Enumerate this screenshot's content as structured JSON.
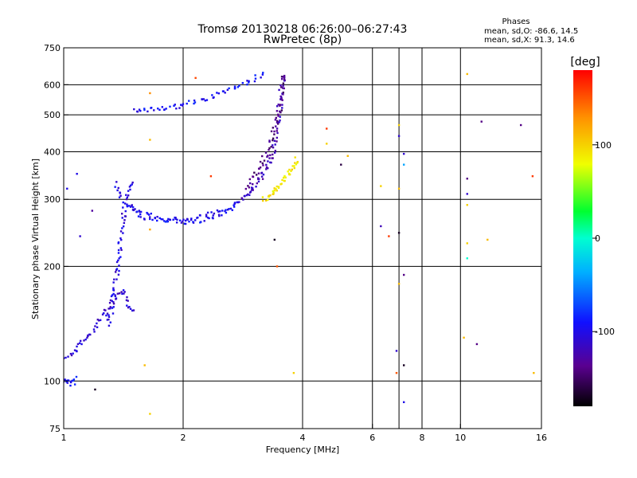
{
  "chart_data": {
    "type": "scatter",
    "title": "Tromsø 20130218 06:26:00–06:27:43",
    "subtitle": "RwPretec (8p)",
    "xlabel": "Frequency [MHz]",
    "ylabel": "Stationary phase Virtual Height [km]",
    "x_scale": "log",
    "y_scale": "log",
    "xlim": [
      1,
      16
    ],
    "ylim": [
      75,
      750
    ],
    "x_ticks": [
      1,
      2,
      4,
      6,
      8,
      10,
      16
    ],
    "x_tick_labels": [
      "1",
      "2",
      "4",
      "6",
      "8",
      "10",
      "16"
    ],
    "x_grid": [
      2,
      4,
      6,
      7,
      8,
      10
    ],
    "y_ticks": [
      75,
      100,
      200,
      300,
      400,
      500,
      600,
      750
    ],
    "y_tick_labels": [
      "75",
      "100",
      "200",
      "300",
      "400",
      "500",
      "600",
      "750"
    ],
    "y_grid": [
      100,
      200,
      300,
      400,
      500,
      600
    ],
    "grid": true,
    "stats": {
      "heading": "Phases",
      "line_o": "mean, sd,O: -86.6, 14.5",
      "line_x": "mean, sd,X:  91.3, 14.6"
    },
    "colorbar": {
      "label": "[deg]",
      "range": [
        -180,
        180
      ],
      "ticks": [
        100,
        0,
        -100
      ],
      "tick_labels": [
        "100",
        "0",
        "-100"
      ]
    },
    "traces": [
      {
        "mode": "O",
        "x": [
          1.0,
          1.05,
          1.1,
          1.15,
          1.2,
          1.25,
          1.3,
          1.35,
          1.4,
          1.45,
          1.5
        ],
        "y": [
          115,
          118,
          125,
          130,
          138,
          148,
          155,
          165,
          175,
          160,
          150
        ],
        "phase": -110
      },
      {
        "mode": "O",
        "x": [
          1.3,
          1.35,
          1.38,
          1.4,
          1.42,
          1.45,
          1.48
        ],
        "y": [
          140,
          180,
          220,
          250,
          280,
          310,
          340
        ],
        "phase": -105
      },
      {
        "mode": "O",
        "x": [
          1.35,
          1.4,
          1.5,
          1.6,
          1.8,
          2.0,
          2.2,
          2.4,
          2.6,
          2.8
        ],
        "y": [
          330,
          300,
          280,
          270,
          265,
          265,
          270,
          275,
          285,
          300
        ],
        "phase": -100
      },
      {
        "mode": "O",
        "x": [
          1.45,
          1.6,
          1.8,
          2.0,
          2.2,
          2.4,
          2.6,
          2.8
        ],
        "y": [
          290,
          275,
          265,
          262,
          263,
          270,
          280,
          295
        ],
        "phase": -95
      },
      {
        "mode": "O",
        "x": [
          2.8,
          2.9,
          3.0,
          3.1,
          3.2,
          3.3,
          3.35,
          3.4,
          3.45,
          3.5,
          3.55,
          3.6
        ],
        "y": [
          300,
          310,
          320,
          335,
          350,
          370,
          390,
          420,
          460,
          520,
          590,
          650
        ],
        "phase": -120
      },
      {
        "mode": "O",
        "x": [
          2.9,
          3.0,
          3.1,
          3.2,
          3.3,
          3.4,
          3.5,
          3.55,
          3.6
        ],
        "y": [
          320,
          340,
          360,
          385,
          415,
          455,
          510,
          570,
          640
        ],
        "phase": -140
      },
      {
        "mode": "X",
        "x": [
          3.2,
          3.3,
          3.4,
          3.5,
          3.6,
          3.7,
          3.8,
          3.9
        ],
        "y": [
          300,
          305,
          315,
          325,
          340,
          355,
          370,
          385
        ],
        "phase": 90
      },
      {
        "mode": "O",
        "x": [
          1.5,
          1.6,
          1.8,
          2.0,
          2.2,
          2.4,
          2.6,
          2.8,
          3.0,
          3.2
        ],
        "y": [
          510,
          515,
          520,
          530,
          545,
          560,
          580,
          600,
          620,
          645
        ],
        "phase": -95
      },
      {
        "mode": "O",
        "x": [
          0.98,
          1.02,
          1.05,
          1.08
        ],
        "y": [
          100,
          100,
          98,
          102
        ],
        "phase": -90
      }
    ],
    "scatter_points": [
      {
        "x": 1.02,
        "y": 320,
        "phase": -100
      },
      {
        "x": 1.08,
        "y": 350,
        "phase": -100
      },
      {
        "x": 1.1,
        "y": 240,
        "phase": -110
      },
      {
        "x": 1.18,
        "y": 280,
        "phase": -130
      },
      {
        "x": 1.2,
        "y": 95,
        "phase": -170
      },
      {
        "x": 1.6,
        "y": 110,
        "phase": 110
      },
      {
        "x": 1.65,
        "y": 82,
        "phase": 100
      },
      {
        "x": 1.65,
        "y": 250,
        "phase": 120
      },
      {
        "x": 1.65,
        "y": 430,
        "phase": 110
      },
      {
        "x": 1.65,
        "y": 570,
        "phase": 130
      },
      {
        "x": 2.15,
        "y": 625,
        "phase": 155
      },
      {
        "x": 2.35,
        "y": 345,
        "phase": 160
      },
      {
        "x": 3.4,
        "y": 235,
        "phase": -170
      },
      {
        "x": 3.45,
        "y": 200,
        "phase": 150
      },
      {
        "x": 3.8,
        "y": 105,
        "phase": 100
      },
      {
        "x": 4.6,
        "y": 460,
        "phase": 160
      },
      {
        "x": 4.6,
        "y": 420,
        "phase": 100
      },
      {
        "x": 5.0,
        "y": 370,
        "phase": -160
      },
      {
        "x": 5.2,
        "y": 390,
        "phase": 110
      },
      {
        "x": 6.3,
        "y": 325,
        "phase": 100
      },
      {
        "x": 6.3,
        "y": 255,
        "phase": -120
      },
      {
        "x": 6.6,
        "y": 240,
        "phase": 160
      },
      {
        "x": 6.9,
        "y": 120,
        "phase": -110
      },
      {
        "x": 6.9,
        "y": 105,
        "phase": 150
      },
      {
        "x": 7.0,
        "y": 470,
        "phase": 100
      },
      {
        "x": 7.0,
        "y": 440,
        "phase": -110
      },
      {
        "x": 7.0,
        "y": 320,
        "phase": 110
      },
      {
        "x": 7.0,
        "y": 245,
        "phase": -170
      },
      {
        "x": 7.0,
        "y": 180,
        "phase": 110
      },
      {
        "x": 7.2,
        "y": 395,
        "phase": -110
      },
      {
        "x": 7.2,
        "y": 370,
        "phase": -40
      },
      {
        "x": 7.2,
        "y": 190,
        "phase": -140
      },
      {
        "x": 7.2,
        "y": 110,
        "phase": -170
      },
      {
        "x": 7.2,
        "y": 88,
        "phase": -100
      },
      {
        "x": 10.2,
        "y": 130,
        "phase": 110
      },
      {
        "x": 10.4,
        "y": 340,
        "phase": -140
      },
      {
        "x": 10.4,
        "y": 310,
        "phase": -110
      },
      {
        "x": 10.4,
        "y": 290,
        "phase": 100
      },
      {
        "x": 10.4,
        "y": 230,
        "phase": 100
      },
      {
        "x": 10.4,
        "y": 210,
        "phase": 0
      },
      {
        "x": 10.4,
        "y": 640,
        "phase": 110
      },
      {
        "x": 11.0,
        "y": 125,
        "phase": -140
      },
      {
        "x": 11.3,
        "y": 480,
        "phase": -140
      },
      {
        "x": 11.7,
        "y": 235,
        "phase": 110
      },
      {
        "x": 14.2,
        "y": 470,
        "phase": -140
      },
      {
        "x": 15.2,
        "y": 345,
        "phase": 160
      },
      {
        "x": 15.3,
        "y": 105,
        "phase": 110
      }
    ]
  }
}
